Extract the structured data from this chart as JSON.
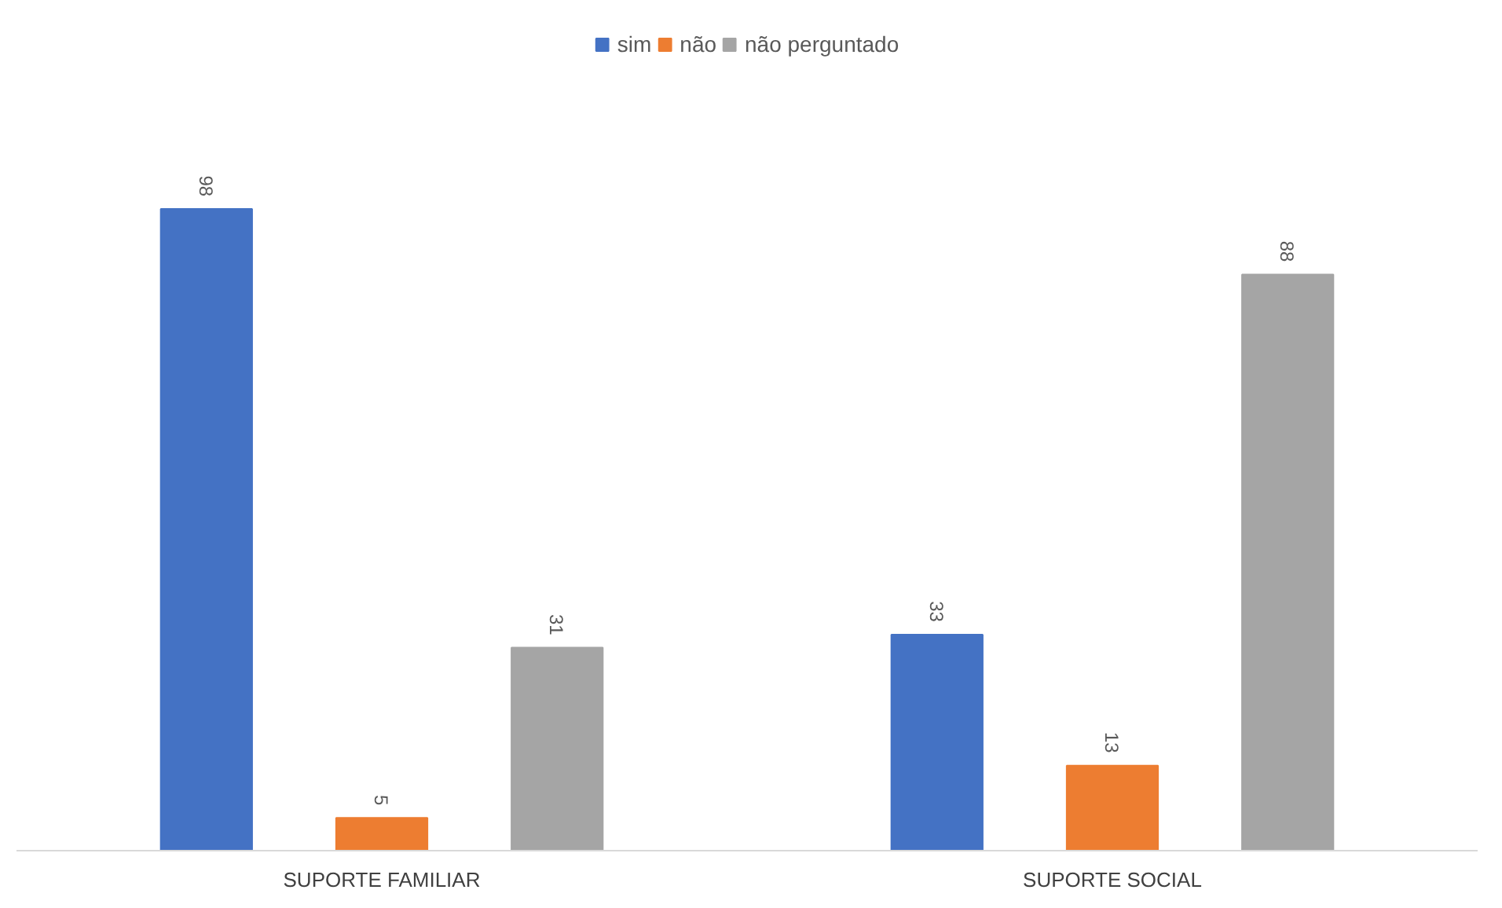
{
  "chart_data": {
    "type": "bar",
    "categories": [
      "SUPORTE FAMILIAR",
      "SUPORTE SOCIAL"
    ],
    "series": [
      {
        "name": "sim",
        "color": "#4472c4",
        "values": [
          98,
          33
        ]
      },
      {
        "name": "não",
        "color": "#ed7d31",
        "values": [
          5,
          13
        ]
      },
      {
        "name": "não perguntado",
        "color": "#a5a5a5",
        "values": [
          31,
          88
        ]
      }
    ],
    "data_labels": true,
    "legend": "top",
    "grid": false
  }
}
